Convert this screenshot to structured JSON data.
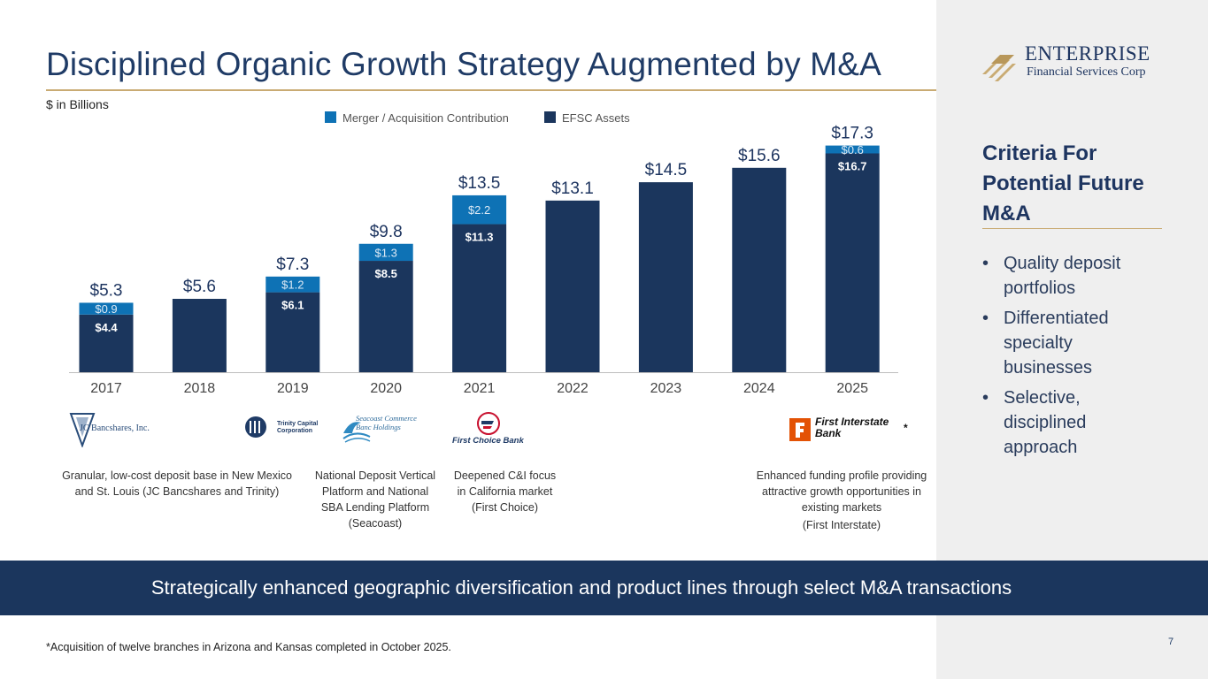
{
  "page": {
    "title": "Disciplined Organic Growth Strategy Augmented by M&A",
    "subtitle": "$ in Billions",
    "banner": "Strategically enhanced geographic diversification and product lines through select M&A transactions",
    "footnote": "*Acquisition of twelve branches in Arizona and Kansas completed in October 2025.",
    "page_number": "7"
  },
  "logo": {
    "name": "ENTERPRISE",
    "tagline": "Financial Services Corp"
  },
  "criteria": {
    "title": "Criteria For Potential Future M&A",
    "bullet": "•",
    "items": [
      "Quality deposit portfolios",
      "Differentiated specialty businesses",
      "Selective, disciplined approach"
    ]
  },
  "chart_data": {
    "type": "bar",
    "stacked": true,
    "categories": [
      "2017",
      "2018",
      "2019",
      "2020",
      "2021",
      "2022",
      "2023",
      "2024",
      "2025"
    ],
    "series": [
      {
        "name": "EFSC Assets",
        "color": "#1b365d",
        "values": [
          4.4,
          5.6,
          6.1,
          8.5,
          11.3,
          13.1,
          14.5,
          15.6,
          16.7
        ],
        "labels": [
          "$4.4",
          null,
          "$6.1",
          "$8.5",
          "$11.3",
          null,
          null,
          null,
          "$16.7"
        ]
      },
      {
        "name": "Merger / Acquisition Contribution",
        "color": "#0e72b5",
        "values": [
          0.9,
          0,
          1.2,
          1.3,
          2.2,
          0,
          0,
          0,
          0.6
        ],
        "labels": [
          "$0.9",
          null,
          "$1.2",
          "$1.3",
          "$2.2",
          null,
          null,
          null,
          "$0.6"
        ]
      }
    ],
    "totals": [
      5.3,
      5.6,
      7.3,
      9.8,
      13.5,
      13.1,
      14.5,
      15.6,
      17.3
    ],
    "total_labels": [
      "$5.3",
      "$5.6",
      "$7.3",
      "$9.8",
      "$13.5",
      "$13.1",
      "$14.5",
      "$15.6",
      "$17.3"
    ],
    "legend": [
      "Merger / Acquisition Contribution",
      "EFSC Assets"
    ],
    "legend_position": "top-center",
    "ylim": [
      0,
      18
    ],
    "grid": false,
    "xlabel": "",
    "ylabel": ""
  },
  "acquisitions": [
    {
      "logo_text": "JC Bancshares, Inc.",
      "caption": "Granular, low-cost deposit base in New Mexico and St. Louis (JC Bancshares and Trinity)"
    },
    {
      "logo_text": "Trinity Capital Corporation",
      "caption": ""
    },
    {
      "logo_text": "Seacoast Commerce Banc Holdings",
      "caption": "National Deposit Vertical Platform and National SBA Lending Platform (Seacoast)"
    },
    {
      "logo_text": "First Choice Bank",
      "caption": "Deepened C&I focus in California market (First Choice)"
    },
    {
      "logo_text": "First Interstate Bank",
      "logo_mark": "*",
      "caption": "Enhanced funding profile providing attractive growth opportunities in existing markets",
      "caption_extra": "(First Interstate)"
    }
  ]
}
